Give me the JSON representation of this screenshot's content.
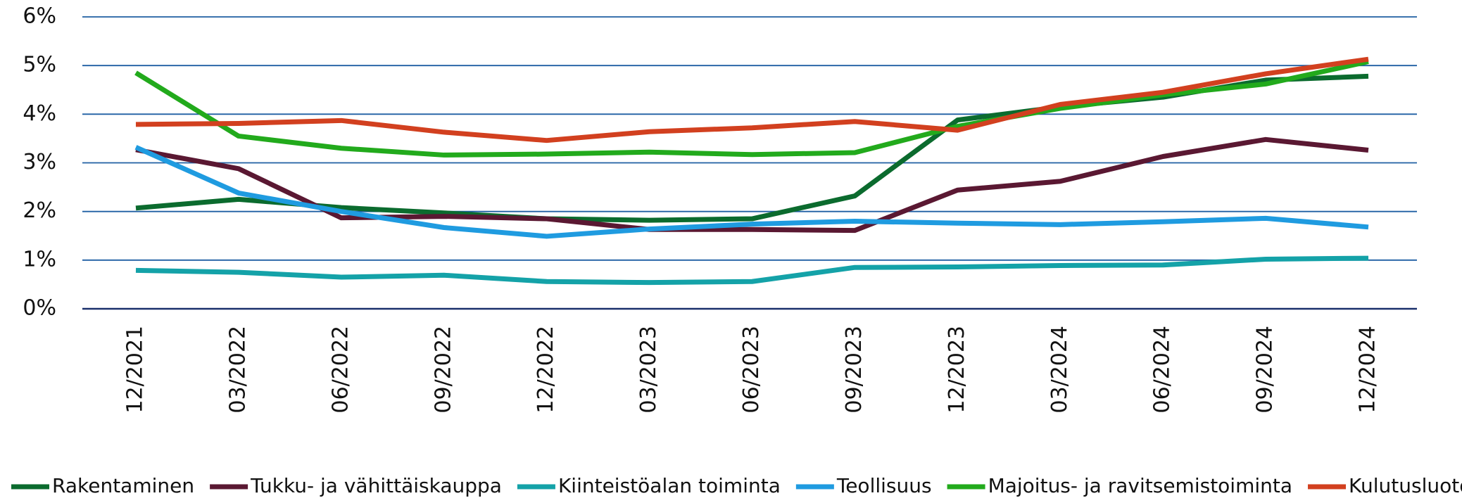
{
  "chart_data": {
    "type": "line",
    "categories": [
      "12/2021",
      "03/2022",
      "06/2022",
      "09/2022",
      "12/2022",
      "03/2023",
      "06/2023",
      "09/2023",
      "12/2023",
      "03/2024",
      "06/2024",
      "09/2024",
      "12/2024"
    ],
    "series": [
      {
        "name": "Rakentaminen",
        "color": "#0b6b2e",
        "values": [
          2.07,
          2.25,
          2.08,
          1.97,
          1.85,
          1.82,
          1.85,
          2.32,
          3.88,
          4.15,
          4.35,
          4.7,
          4.78
        ]
      },
      {
        "name": "Tukku- ja vähittäiskauppa",
        "color": "#5a1832",
        "values": [
          3.27,
          2.88,
          1.87,
          1.9,
          1.85,
          1.63,
          1.63,
          1.61,
          2.44,
          2.62,
          3.13,
          3.48,
          3.26
        ]
      },
      {
        "name": "Kiinteistöalan toiminta",
        "color": "#14a2a8",
        "values": [
          0.79,
          0.75,
          0.65,
          0.69,
          0.56,
          0.54,
          0.56,
          0.85,
          0.86,
          0.89,
          0.9,
          1.02,
          1.04
        ]
      },
      {
        "name": "Teollisuus",
        "color": "#1f9be0",
        "values": [
          3.32,
          2.38,
          2.0,
          1.67,
          1.49,
          1.64,
          1.74,
          1.8,
          1.76,
          1.73,
          1.79,
          1.86,
          1.68
        ]
      },
      {
        "name": "Majoitus- ja ravitsemistoiminta",
        "color": "#22aa1c",
        "values": [
          4.85,
          3.55,
          3.3,
          3.16,
          3.18,
          3.22,
          3.17,
          3.21,
          3.75,
          4.12,
          4.4,
          4.62,
          5.08
        ]
      },
      {
        "name": "Kulutusluotot",
        "color": "#d2401f",
        "values": [
          3.79,
          3.81,
          3.87,
          3.63,
          3.46,
          3.64,
          3.72,
          3.85,
          3.67,
          4.2,
          4.45,
          4.83,
          5.13
        ]
      }
    ],
    "ylim": [
      0,
      6
    ],
    "yticks": [
      {
        "value": 0,
        "label": "0%"
      },
      {
        "value": 1,
        "label": "1%"
      },
      {
        "value": 2,
        "label": "2%"
      },
      {
        "value": 3,
        "label": "3%"
      },
      {
        "value": 4,
        "label": "4%"
      },
      {
        "value": 5,
        "label": "5%"
      },
      {
        "value": 6,
        "label": "6%"
      }
    ],
    "grid": true,
    "legend": "bottom"
  }
}
